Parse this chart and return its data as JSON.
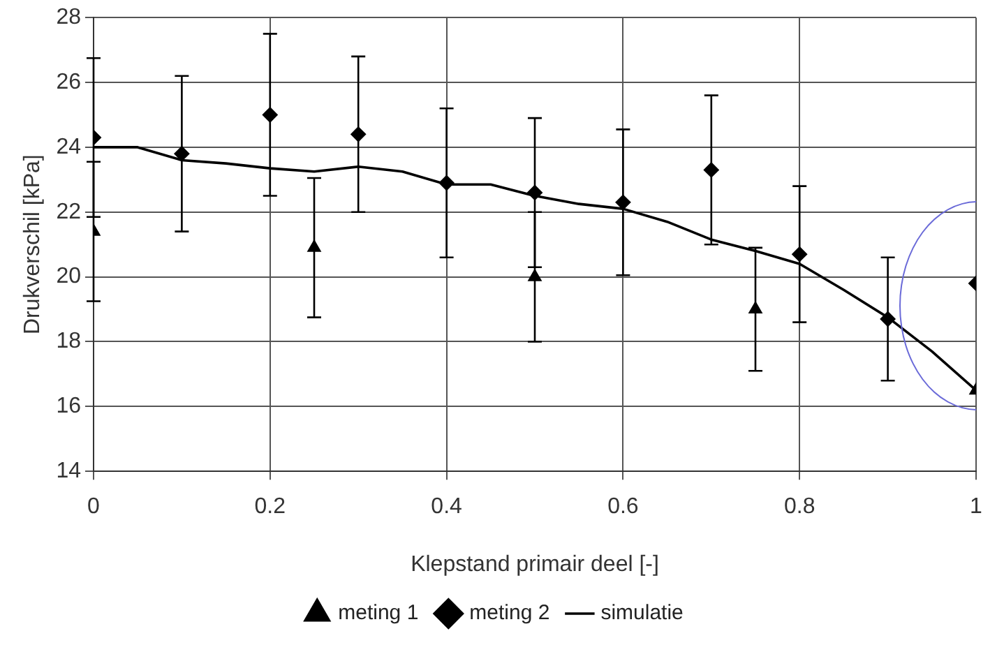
{
  "chart_data": {
    "type": "scatter",
    "xlabel": "Klepstand primair deel [-]",
    "ylabel": "Drukverschil [kPa]",
    "xlim": [
      0,
      1
    ],
    "xticks": [
      0,
      0.2,
      0.4,
      0.6,
      0.8,
      1
    ],
    "ylim": [
      14,
      28
    ],
    "yticks": [
      14,
      16,
      18,
      20,
      22,
      24,
      26,
      28
    ],
    "grid": true,
    "legend": "bottom",
    "series": [
      {
        "name": "meting 1",
        "marker": "triangle",
        "color": "#000000",
        "x": [
          0,
          0.25,
          0.5,
          0.75,
          1
        ],
        "values": [
          21.4,
          20.9,
          20.0,
          19.0,
          16.5
        ],
        "errors": [
          2.15,
          2.15,
          2.0,
          1.9,
          null
        ]
      },
      {
        "name": "meting 2",
        "marker": "diamond",
        "color": "#000000",
        "x": [
          0,
          0.1,
          0.2,
          0.3,
          0.4,
          0.5,
          0.6,
          0.7,
          0.8,
          0.9,
          1
        ],
        "values": [
          24.3,
          23.8,
          25.0,
          24.4,
          22.9,
          22.6,
          22.3,
          23.3,
          20.7,
          18.7,
          19.8
        ],
        "errors": [
          2.45,
          2.4,
          2.5,
          2.4,
          2.3,
          2.3,
          2.25,
          2.3,
          2.1,
          1.9,
          null
        ]
      },
      {
        "name": "simulatie",
        "type": "line",
        "marker": "none",
        "line_style": "solid",
        "color": "#000000",
        "x": [
          0,
          0.05,
          0.1,
          0.15,
          0.2,
          0.25,
          0.3,
          0.35,
          0.4,
          0.45,
          0.5,
          0.55,
          0.6,
          0.65,
          0.7,
          0.75,
          0.8,
          0.85,
          0.9,
          0.95,
          1
        ],
        "values": [
          24.0,
          24.0,
          23.6,
          23.5,
          23.35,
          23.25,
          23.4,
          23.25,
          22.85,
          22.85,
          22.5,
          22.25,
          22.1,
          21.7,
          21.15,
          20.8,
          20.4,
          19.6,
          18.75,
          17.7,
          16.5
        ]
      }
    ]
  }
}
